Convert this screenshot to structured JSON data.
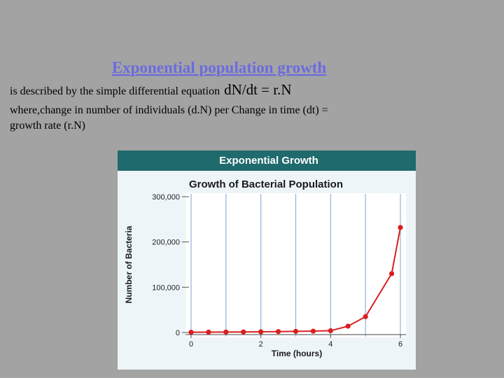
{
  "slide": {
    "heading": "Exponential population growth",
    "line1": "is described by the simple differential equation",
    "equation": "dN/dt = r.N",
    "line2": "where,change in number of individuals (d.N) per Change in time (dt) =",
    "line3": "growth rate (r.N)"
  },
  "chart_data": {
    "type": "line",
    "banner": "Exponential Growth",
    "title": "Growth of Bacterial Population",
    "x_label": "Time (hours)",
    "y_label": "Number of Bacteria",
    "x": [
      0,
      0.5,
      1,
      1.5,
      2,
      2.5,
      3,
      3.5,
      4,
      4.5,
      5,
      5.75,
      6
    ],
    "series": [
      {
        "color": "#d91f1f",
        "values": [
          500,
          800,
          1000,
          1200,
          1500,
          2000,
          2500,
          3000,
          4000,
          14000,
          35000,
          130000,
          232000
        ]
      }
    ],
    "xlim": [
      0,
      6
    ],
    "ylim": [
      0,
      300000
    ],
    "xticks": [
      0,
      2,
      4,
      6
    ],
    "xgrid": [
      0,
      1,
      2,
      3,
      4,
      5,
      6
    ],
    "yticks": [
      {
        "value": 0,
        "label": "0"
      },
      {
        "value": 100000,
        "label": "100,000"
      },
      {
        "value": 200000,
        "label": "200,000"
      },
      {
        "value": 300000,
        "label": "300,000"
      }
    ]
  }
}
